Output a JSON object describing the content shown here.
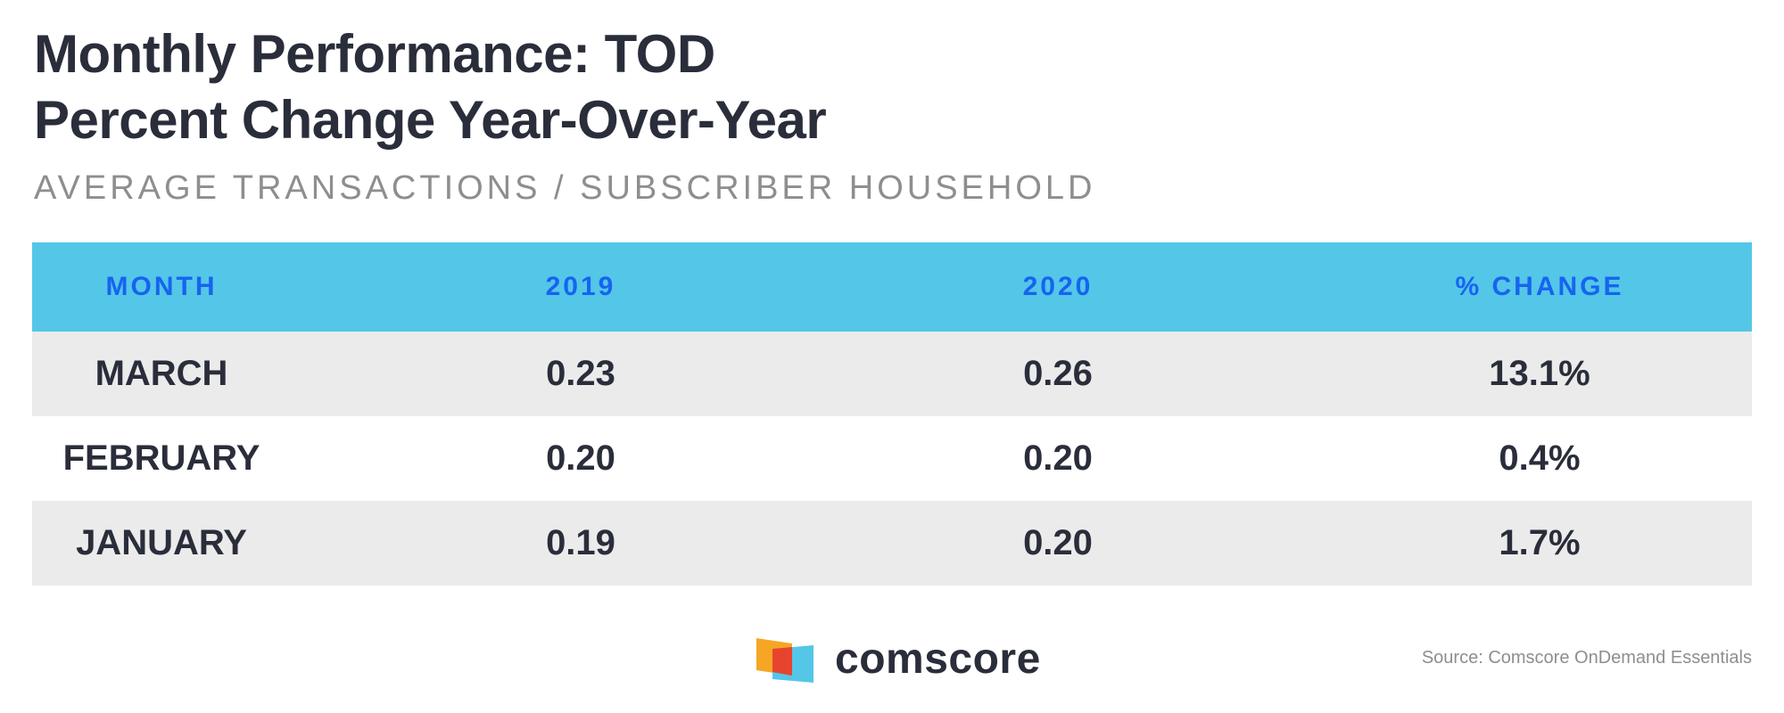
{
  "chart_data": {
    "type": "table",
    "title": [
      "Monthly Performance: TOD",
      "Percent Change Year-Over-Year"
    ],
    "subtitle": "AVERAGE TRANSACTIONS / SUBSCRIBER HOUSEHOLD",
    "columns": [
      "MONTH",
      "2019",
      "2020",
      "% CHANGE"
    ],
    "rows": [
      [
        "MARCH",
        "0.23",
        "0.26",
        "13.1%"
      ],
      [
        "FEBRUARY",
        "0.20",
        "0.20",
        "0.4%"
      ],
      [
        "JANUARY",
        "0.19",
        "0.20",
        "1.7%"
      ]
    ],
    "values": {
      "2019": [
        0.23,
        0.2,
        0.19
      ],
      "2020": [
        0.26,
        0.2,
        0.2
      ],
      "pct_change": [
        13.1,
        0.4,
        1.7
      ]
    }
  },
  "logo": {
    "name": "comscore",
    "colors": [
      "#f5a623",
      "#e8432e",
      "#54c6e8"
    ]
  },
  "footer": {
    "source": "Source: Comscore OnDemand Essentials"
  },
  "colors": {
    "title": "#2a2d3a",
    "subtitle": "#8e8e8e",
    "header_bg": "#54c6e8",
    "header_text": "#1664f0",
    "row_shaded": "#ebebeb"
  }
}
